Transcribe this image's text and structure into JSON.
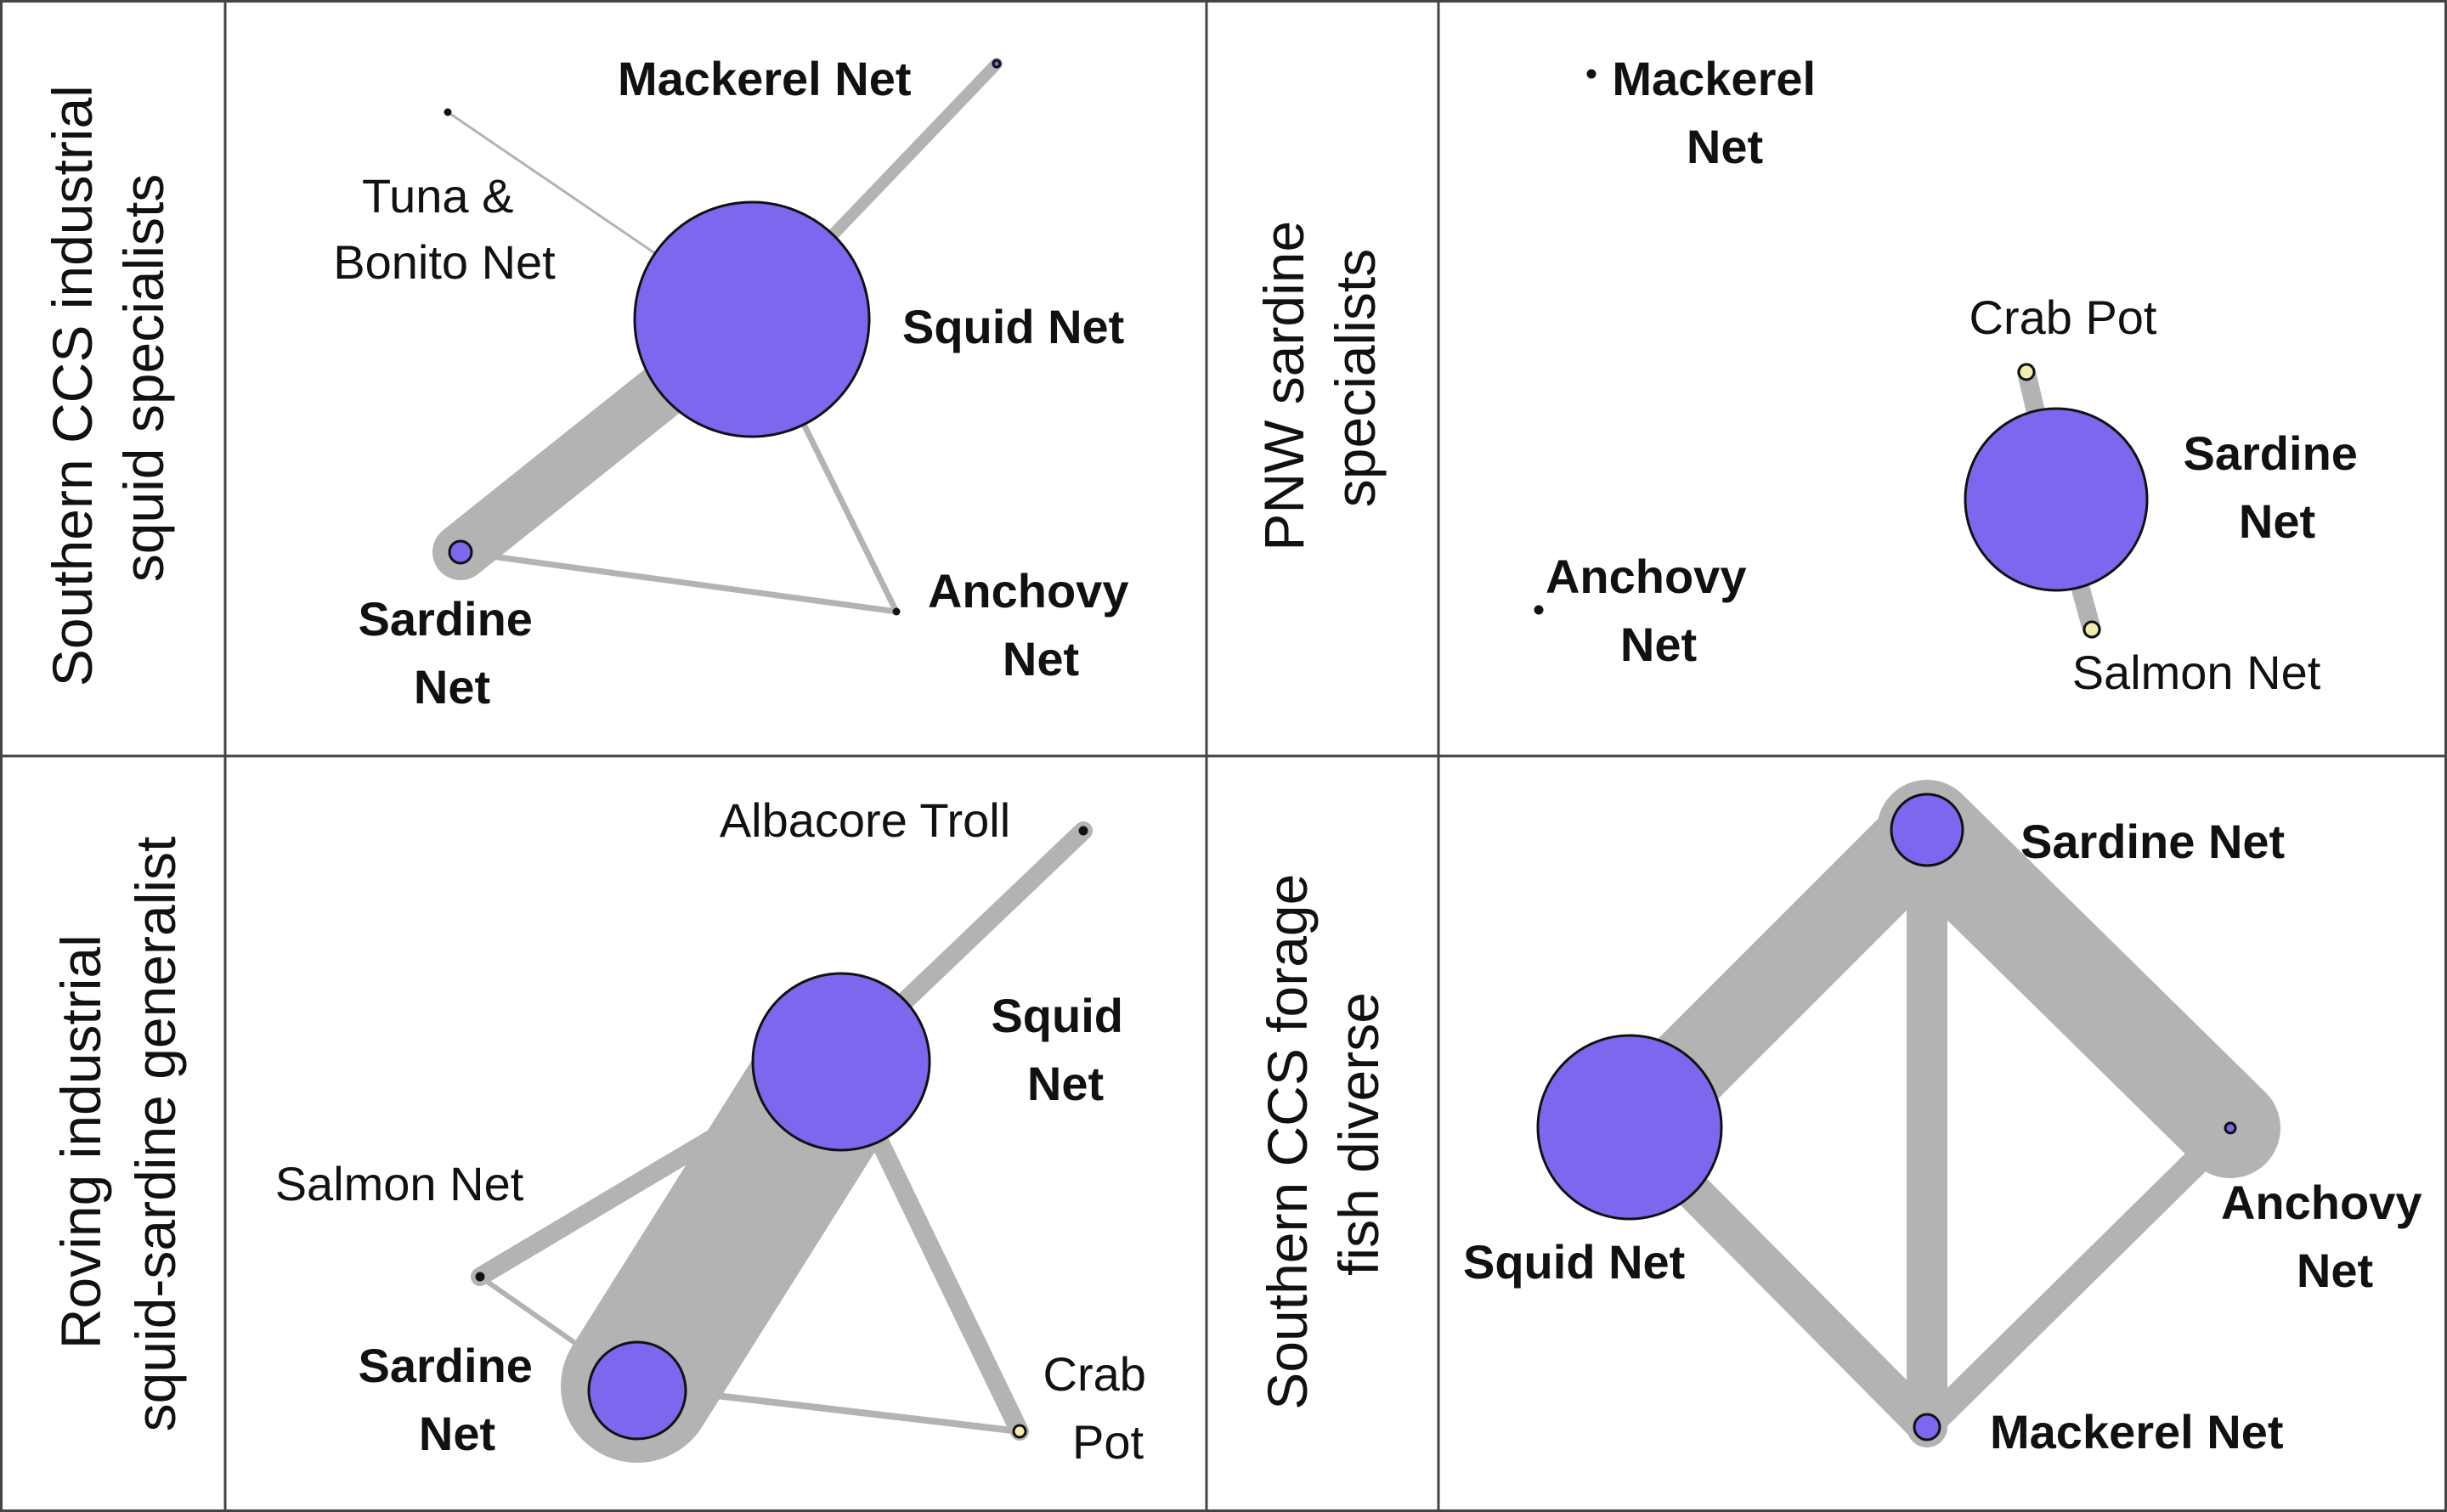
{
  "colors": {
    "node_fill": "#7b68ee",
    "node_small_light": "#f2ecb0",
    "edge": "#b3b3b3",
    "grid": "#444444",
    "text": "#111111"
  },
  "panels": [
    {
      "id": "southern-ccs-industrial-squid-specialists",
      "label_lines": [
        "Southern CCS industrial",
        "squid specialists"
      ],
      "nodes": [
        {
          "id": "squid",
          "lines": [
            "Squid Net"
          ],
          "bold": true
        },
        {
          "id": "mackerel",
          "lines": [
            "Mackerel  Net"
          ],
          "bold": true
        },
        {
          "id": "tuna",
          "lines": [
            "Tuna &",
            "Bonito Net"
          ],
          "bold": false
        },
        {
          "id": "sardine",
          "lines": [
            "Sardine",
            "Net"
          ],
          "bold": true
        },
        {
          "id": "anchovy",
          "lines": [
            "Anchovy",
            "Net"
          ],
          "bold": true
        }
      ]
    },
    {
      "id": "pnw-sardine-specialists",
      "label_lines": [
        "PNW sardine",
        "specialists"
      ],
      "nodes": [
        {
          "id": "mackerel",
          "lines": [
            "Mackerel",
            "Net"
          ],
          "bold": true
        },
        {
          "id": "crab",
          "lines": [
            "Crab Pot"
          ],
          "bold": false
        },
        {
          "id": "sardine",
          "lines": [
            "Sardine",
            "Net"
          ],
          "bold": true
        },
        {
          "id": "anchovy",
          "lines": [
            "Anchovy",
            "Net"
          ],
          "bold": true
        },
        {
          "id": "salmon",
          "lines": [
            "Salmon Net"
          ],
          "bold": false
        }
      ]
    },
    {
      "id": "roving-industrial-squid-sardine-generalist",
      "label_lines": [
        "Roving industrial",
        "squid-sardine generalist"
      ],
      "nodes": [
        {
          "id": "albacore",
          "lines": [
            "Albacore Troll"
          ],
          "bold": false
        },
        {
          "id": "squid",
          "lines": [
            "Squid",
            "Net"
          ],
          "bold": true
        },
        {
          "id": "salmon",
          "lines": [
            "Salmon Net"
          ],
          "bold": false
        },
        {
          "id": "sardine",
          "lines": [
            "Sardine",
            "Net"
          ],
          "bold": true
        },
        {
          "id": "crab",
          "lines": [
            "Crab",
            "Pot"
          ],
          "bold": false
        }
      ]
    },
    {
      "id": "southern-ccs-forage-fish-diverse",
      "label_lines": [
        "Southern CCS forage",
        "fish diverse"
      ],
      "nodes": [
        {
          "id": "sardine",
          "lines": [
            "Sardine Net"
          ],
          "bold": true
        },
        {
          "id": "squid",
          "lines": [
            "Squid Net"
          ],
          "bold": true
        },
        {
          "id": "anchovy",
          "lines": [
            "Anchovy",
            "Net"
          ],
          "bold": true
        },
        {
          "id": "mackerel",
          "lines": [
            "Mackerel  Net"
          ],
          "bold": true
        }
      ]
    }
  ]
}
